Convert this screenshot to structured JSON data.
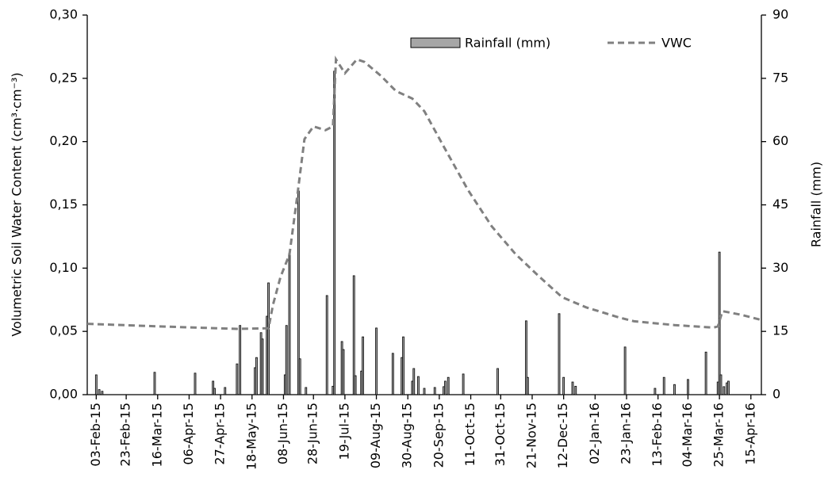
{
  "chart_data": {
    "type": "combo",
    "ylabel": "Volumetric Soil Water Content (cm³·cm⁻³)",
    "y2label": "Rainfall (mm)",
    "xlim": [
      "2015-01-28",
      "2016-04-22"
    ],
    "xticks": [
      {
        "value": "2015-02-03",
        "label": "03-Feb-15"
      },
      {
        "value": "2015-02-23",
        "label": "23-Feb-15"
      },
      {
        "value": "2015-03-16",
        "label": "16-Mar-15"
      },
      {
        "value": "2015-04-06",
        "label": "06-Apr-15"
      },
      {
        "value": "2015-04-27",
        "label": "27-Apr-15"
      },
      {
        "value": "2015-05-18",
        "label": "18-May-15"
      },
      {
        "value": "2015-06-08",
        "label": "08-Jun-15"
      },
      {
        "value": "2015-06-28",
        "label": "28-Jun-15"
      },
      {
        "value": "2015-07-19",
        "label": "19-Jul-15"
      },
      {
        "value": "2015-08-09",
        "label": "09-Aug-15"
      },
      {
        "value": "2015-08-30",
        "label": "30-Aug-15"
      },
      {
        "value": "2015-09-20",
        "label": "20-Sep-15"
      },
      {
        "value": "2015-10-11",
        "label": "11-Oct-15"
      },
      {
        "value": "2015-10-31",
        "label": "31-Oct-15"
      },
      {
        "value": "2015-11-21",
        "label": "21-Nov-15"
      },
      {
        "value": "2015-12-12",
        "label": "12-Dec-15"
      },
      {
        "value": "2016-01-02",
        "label": "02-Jan-16"
      },
      {
        "value": "2016-01-23",
        "label": "23-Jan-16"
      },
      {
        "value": "2016-02-13",
        "label": "13-Feb-16"
      },
      {
        "value": "2016-03-04",
        "label": "04-Mar-16"
      },
      {
        "value": "2016-03-25",
        "label": "25-Mar-16"
      },
      {
        "value": "2016-04-15",
        "label": "15-Apr-16"
      }
    ],
    "ylim": [
      0,
      0.3
    ],
    "yticks": [
      {
        "value": 0,
        "label": "0,00"
      },
      {
        "value": 0.05,
        "label": "0,05"
      },
      {
        "value": 0.1,
        "label": "0,10"
      },
      {
        "value": 0.15,
        "label": "0,15"
      },
      {
        "value": 0.2,
        "label": "0,20"
      },
      {
        "value": 0.25,
        "label": "0,25"
      },
      {
        "value": 0.3,
        "label": "0,30"
      }
    ],
    "y2lim": [
      0,
      90
    ],
    "y2ticks": [
      0,
      15,
      30,
      45,
      60,
      75,
      90
    ],
    "legend": "upper right",
    "series": [
      {
        "name": "Rainfall (mm)",
        "type": "bar",
        "axis": "y2",
        "color": "#a6a6a6",
        "edgecolor": "#000000",
        "x": [
          "2015-02-03",
          "2015-02-05",
          "2015-02-07",
          "2015-03-14",
          "2015-04-10",
          "2015-04-22",
          "2015-04-23",
          "2015-04-30",
          "2015-05-08",
          "2015-05-10",
          "2015-05-20",
          "2015-05-21",
          "2015-05-24",
          "2015-05-25",
          "2015-05-28",
          "2015-05-29",
          "2015-06-09",
          "2015-06-10",
          "2015-06-12",
          "2015-06-18",
          "2015-06-19",
          "2015-06-23",
          "2015-07-07",
          "2015-07-11",
          "2015-07-12",
          "2015-07-17",
          "2015-07-18",
          "2015-07-25",
          "2015-07-26",
          "2015-07-30",
          "2015-07-31",
          "2015-08-09",
          "2015-08-20",
          "2015-08-26",
          "2015-08-27",
          "2015-09-02",
          "2015-09-03",
          "2015-09-06",
          "2015-09-10",
          "2015-09-17",
          "2015-09-23",
          "2015-09-24",
          "2015-09-26",
          "2015-10-06",
          "2015-10-29",
          "2015-11-17",
          "2015-11-18",
          "2015-12-09",
          "2015-12-12",
          "2015-12-18",
          "2015-12-20",
          "2016-01-22",
          "2016-02-11",
          "2016-02-17",
          "2016-02-24",
          "2016-03-04",
          "2016-03-16",
          "2016-03-24",
          "2016-03-25",
          "2016-03-26",
          "2016-03-28",
          "2016-03-30",
          "2016-03-31"
        ],
        "values": [
          4.7,
          1.2,
          0.8,
          5.3,
          5.1,
          3.2,
          1.5,
          1.7,
          7.3,
          16.4,
          6.4,
          8.8,
          14.7,
          13.2,
          18.6,
          26.5,
          4.7,
          16.4,
          33.5,
          48.3,
          8.5,
          1.7,
          23.5,
          2,
          76.7,
          12.6,
          10.7,
          28.2,
          4.5,
          5.6,
          13.7,
          15.8,
          9.8,
          8.8,
          13.7,
          3.2,
          6.2,
          4.3,
          1.5,
          1.7,
          1.9,
          3.2,
          4.1,
          4.9,
          6.2,
          17.5,
          4.1,
          19.2,
          4.1,
          3,
          2,
          11.3,
          1.5,
          4.1,
          2.4,
          3.6,
          10.1,
          3,
          33.8,
          4.7,
          1.9,
          2.8,
          3.2
        ]
      },
      {
        "name": "VWC",
        "type": "line",
        "axis": "y",
        "color": "#808080",
        "dashed": true,
        "x": [
          "2015-01-28",
          "2015-03-16",
          "2015-05-08",
          "2015-05-29",
          "2015-06-01",
          "2015-06-06",
          "2015-06-12",
          "2015-06-17",
          "2015-06-22",
          "2015-06-28",
          "2015-07-06",
          "2015-07-11",
          "2015-07-13",
          "2015-07-19",
          "2015-07-27",
          "2015-08-01",
          "2015-08-12",
          "2015-08-22",
          "2015-09-02",
          "2015-09-10",
          "2015-09-23",
          "2015-10-09",
          "2015-10-25",
          "2015-11-10",
          "2015-11-26",
          "2015-12-11",
          "2015-12-27",
          "2016-01-18",
          "2016-01-28",
          "2016-02-24",
          "2016-03-21",
          "2016-03-24",
          "2016-03-27",
          "2016-04-09",
          "2016-04-22"
        ],
        "values": [
          0.056,
          0.054,
          0.052,
          0.0525,
          0.071,
          0.093,
          0.111,
          0.155,
          0.202,
          0.212,
          0.209,
          0.212,
          0.265,
          0.254,
          0.265,
          0.263,
          0.252,
          0.24,
          0.234,
          0.224,
          0.196,
          0.162,
          0.133,
          0.111,
          0.093,
          0.077,
          0.069,
          0.061,
          0.058,
          0.055,
          0.053,
          0.054,
          0.066,
          0.063,
          0.059
        ]
      }
    ]
  }
}
